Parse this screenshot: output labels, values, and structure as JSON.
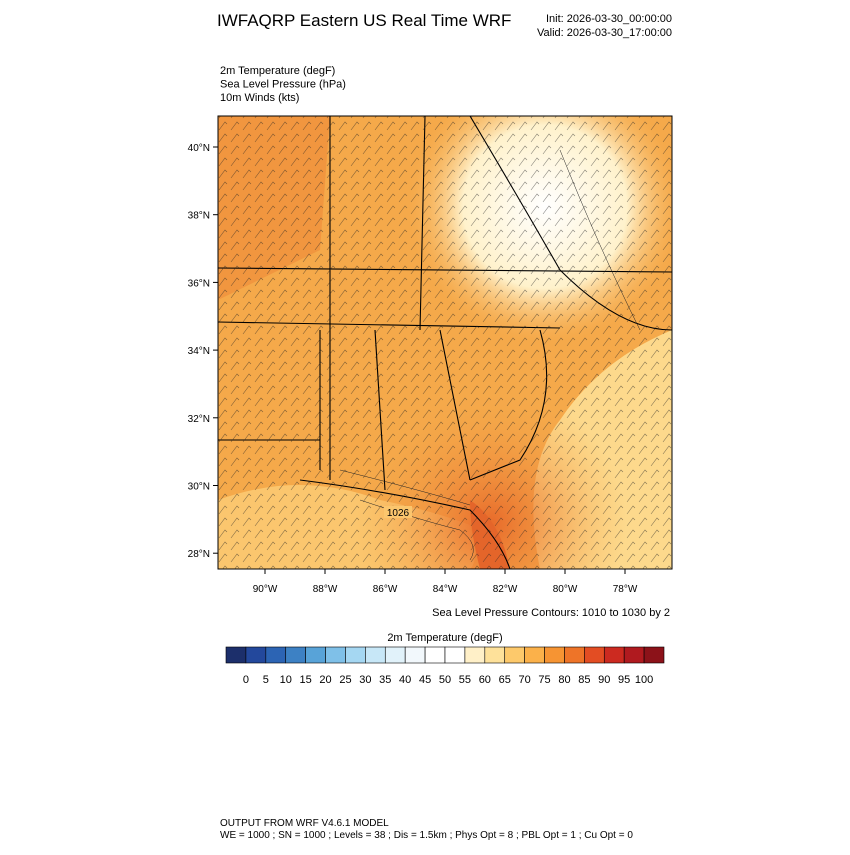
{
  "header": {
    "title": "IWFAQRP Eastern US Real Time WRF",
    "init": "Init: 2026-03-30_00:00:00",
    "valid": "Valid: 2026-03-30_17:00:00"
  },
  "fields": [
    "2m Temperature   (degF)",
    "Sea Level Pressure   (hPa)",
    "10m Winds   (kts)"
  ],
  "map": {
    "lat_labels": [
      "40°N",
      "38°N",
      "36°N",
      "34°N",
      "32°N",
      "30°N",
      "28°N"
    ],
    "lon_labels": [
      "90°W",
      "88°W",
      "86°W",
      "84°W",
      "82°W",
      "80°W",
      "78°W"
    ],
    "contour_label": "1026",
    "contour_note": "Sea Level Pressure Contours: 1010 to 1030 by 2"
  },
  "colorbar": {
    "title": "2m Temperature  (degF)",
    "labels": [
      "0",
      "5",
      "10",
      "15",
      "20",
      "25",
      "30",
      "35",
      "40",
      "45",
      "50",
      "55",
      "60",
      "65",
      "70",
      "75",
      "80",
      "85",
      "90",
      "95",
      "100"
    ],
    "colors": [
      "#1c2f6b",
      "#23489c",
      "#2c64b4",
      "#3d81c4",
      "#58a3d8",
      "#7fc0e8",
      "#a5d7f2",
      "#c7e7f7",
      "#e1f2fa",
      "#f2f8fc",
      "#ffffff",
      "#ffffff",
      "#fff0c8",
      "#fee19a",
      "#fdc96b",
      "#fbb14a",
      "#f69433",
      "#ee7428",
      "#e34d23",
      "#cc2a20",
      "#b01a1f",
      "#8c1219"
    ]
  },
  "footer": [
    "OUTPUT FROM WRF V4.6.1 MODEL",
    "WE = 1000 ; SN = 1000 ; Levels = 38 ; Dis = 1.5km ; Phys Opt = 8 ; PBL Opt = 1 ; Cu Opt = 0"
  ]
}
